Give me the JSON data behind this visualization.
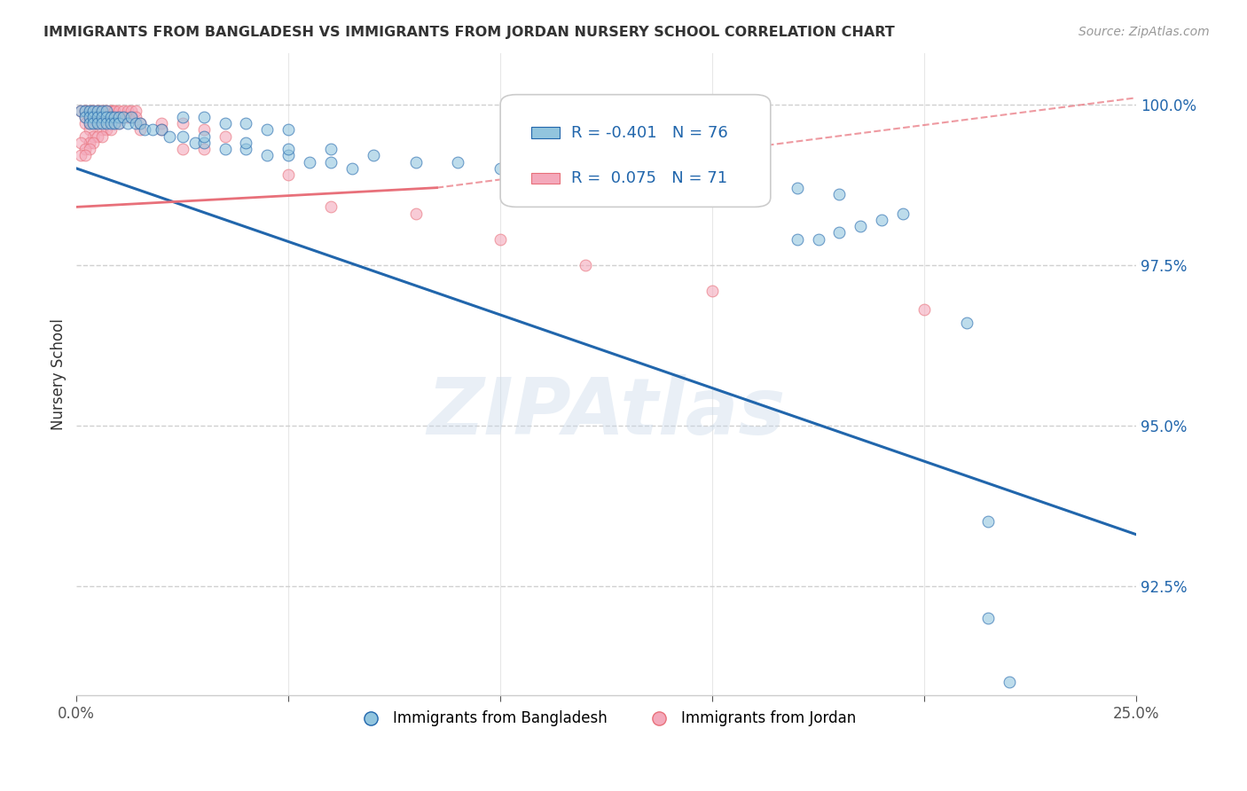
{
  "title": "IMMIGRANTS FROM BANGLADESH VS IMMIGRANTS FROM JORDAN NURSERY SCHOOL CORRELATION CHART",
  "source": "Source: ZipAtlas.com",
  "ylabel": "Nursery School",
  "ytick_values": [
    0.925,
    0.95,
    0.975,
    1.0
  ],
  "xlim": [
    0.0,
    0.25
  ],
  "ylim": [
    0.908,
    1.008
  ],
  "legend_blue_label": "Immigrants from Bangladesh",
  "legend_pink_label": "Immigrants from Jordan",
  "R_blue": -0.401,
  "N_blue": 76,
  "R_pink": 0.075,
  "N_pink": 71,
  "blue_color": "#92c5de",
  "pink_color": "#f4a9bb",
  "blue_line_color": "#2166ac",
  "pink_line_color": "#e8707a",
  "blue_line": [
    [
      0.0,
      0.99
    ],
    [
      0.25,
      0.933
    ]
  ],
  "pink_line_solid": [
    [
      0.0,
      0.984
    ],
    [
      0.085,
      0.987
    ]
  ],
  "pink_line_dash": [
    [
      0.085,
      0.987
    ],
    [
      0.25,
      1.001
    ]
  ],
  "blue_scatter": [
    [
      0.001,
      0.999
    ],
    [
      0.002,
      0.999
    ],
    [
      0.002,
      0.998
    ],
    [
      0.003,
      0.999
    ],
    [
      0.003,
      0.998
    ],
    [
      0.003,
      0.997
    ],
    [
      0.004,
      0.999
    ],
    [
      0.004,
      0.998
    ],
    [
      0.004,
      0.997
    ],
    [
      0.005,
      0.999
    ],
    [
      0.005,
      0.998
    ],
    [
      0.005,
      0.997
    ],
    [
      0.006,
      0.999
    ],
    [
      0.006,
      0.998
    ],
    [
      0.006,
      0.997
    ],
    [
      0.007,
      0.999
    ],
    [
      0.007,
      0.998
    ],
    [
      0.007,
      0.997
    ],
    [
      0.008,
      0.998
    ],
    [
      0.008,
      0.997
    ],
    [
      0.009,
      0.998
    ],
    [
      0.009,
      0.997
    ],
    [
      0.01,
      0.998
    ],
    [
      0.01,
      0.997
    ],
    [
      0.011,
      0.998
    ],
    [
      0.012,
      0.997
    ],
    [
      0.013,
      0.998
    ],
    [
      0.014,
      0.997
    ],
    [
      0.015,
      0.997
    ],
    [
      0.016,
      0.996
    ],
    [
      0.018,
      0.996
    ],
    [
      0.02,
      0.996
    ],
    [
      0.022,
      0.995
    ],
    [
      0.025,
      0.995
    ],
    [
      0.028,
      0.994
    ],
    [
      0.03,
      0.994
    ],
    [
      0.035,
      0.993
    ],
    [
      0.04,
      0.993
    ],
    [
      0.045,
      0.992
    ],
    [
      0.05,
      0.992
    ],
    [
      0.055,
      0.991
    ],
    [
      0.06,
      0.991
    ],
    [
      0.065,
      0.99
    ],
    [
      0.03,
      0.995
    ],
    [
      0.04,
      0.994
    ],
    [
      0.05,
      0.993
    ],
    [
      0.06,
      0.993
    ],
    [
      0.07,
      0.992
    ],
    [
      0.08,
      0.991
    ],
    [
      0.09,
      0.991
    ],
    [
      0.1,
      0.99
    ],
    [
      0.11,
      0.99
    ],
    [
      0.12,
      0.989
    ],
    [
      0.13,
      0.989
    ],
    [
      0.14,
      0.988
    ],
    [
      0.15,
      0.988
    ],
    [
      0.16,
      0.987
    ],
    [
      0.17,
      0.987
    ],
    [
      0.18,
      0.986
    ],
    [
      0.025,
      0.998
    ],
    [
      0.03,
      0.998
    ],
    [
      0.035,
      0.997
    ],
    [
      0.04,
      0.997
    ],
    [
      0.045,
      0.996
    ],
    [
      0.05,
      0.996
    ],
    [
      0.17,
      0.979
    ],
    [
      0.175,
      0.979
    ],
    [
      0.18,
      0.98
    ],
    [
      0.185,
      0.981
    ],
    [
      0.19,
      0.982
    ],
    [
      0.195,
      0.983
    ],
    [
      0.21,
      0.966
    ],
    [
      0.215,
      0.935
    ],
    [
      0.22,
      0.91
    ],
    [
      0.215,
      0.92
    ]
  ],
  "pink_scatter": [
    [
      0.001,
      0.999
    ],
    [
      0.002,
      0.999
    ],
    [
      0.002,
      0.999
    ],
    [
      0.003,
      0.999
    ],
    [
      0.003,
      0.999
    ],
    [
      0.004,
      0.999
    ],
    [
      0.004,
      0.999
    ],
    [
      0.005,
      0.999
    ],
    [
      0.005,
      0.999
    ],
    [
      0.006,
      0.999
    ],
    [
      0.006,
      0.999
    ],
    [
      0.007,
      0.999
    ],
    [
      0.007,
      0.999
    ],
    [
      0.008,
      0.999
    ],
    [
      0.008,
      0.999
    ],
    [
      0.009,
      0.999
    ],
    [
      0.009,
      0.999
    ],
    [
      0.01,
      0.999
    ],
    [
      0.01,
      0.998
    ],
    [
      0.011,
      0.999
    ],
    [
      0.011,
      0.998
    ],
    [
      0.012,
      0.999
    ],
    [
      0.012,
      0.998
    ],
    [
      0.013,
      0.999
    ],
    [
      0.013,
      0.998
    ],
    [
      0.014,
      0.999
    ],
    [
      0.014,
      0.998
    ],
    [
      0.002,
      0.998
    ],
    [
      0.003,
      0.998
    ],
    [
      0.004,
      0.998
    ],
    [
      0.005,
      0.998
    ],
    [
      0.006,
      0.998
    ],
    [
      0.007,
      0.998
    ],
    [
      0.008,
      0.998
    ],
    [
      0.009,
      0.997
    ],
    [
      0.01,
      0.997
    ],
    [
      0.002,
      0.997
    ],
    [
      0.003,
      0.997
    ],
    [
      0.004,
      0.997
    ],
    [
      0.005,
      0.997
    ],
    [
      0.006,
      0.996
    ],
    [
      0.007,
      0.996
    ],
    [
      0.008,
      0.996
    ],
    [
      0.003,
      0.996
    ],
    [
      0.004,
      0.995
    ],
    [
      0.005,
      0.995
    ],
    [
      0.006,
      0.995
    ],
    [
      0.002,
      0.995
    ],
    [
      0.003,
      0.994
    ],
    [
      0.004,
      0.994
    ],
    [
      0.015,
      0.997
    ],
    [
      0.02,
      0.997
    ],
    [
      0.025,
      0.997
    ],
    [
      0.015,
      0.996
    ],
    [
      0.02,
      0.996
    ],
    [
      0.001,
      0.994
    ],
    [
      0.002,
      0.993
    ],
    [
      0.003,
      0.993
    ],
    [
      0.001,
      0.992
    ],
    [
      0.002,
      0.992
    ],
    [
      0.03,
      0.996
    ],
    [
      0.035,
      0.995
    ],
    [
      0.025,
      0.993
    ],
    [
      0.03,
      0.993
    ],
    [
      0.05,
      0.989
    ],
    [
      0.06,
      0.984
    ],
    [
      0.08,
      0.983
    ],
    [
      0.1,
      0.979
    ],
    [
      0.12,
      0.975
    ],
    [
      0.15,
      0.971
    ],
    [
      0.2,
      0.968
    ]
  ],
  "watermark": "ZIPAtlas",
  "background_color": "#ffffff",
  "grid_color": "#d0d0d0"
}
